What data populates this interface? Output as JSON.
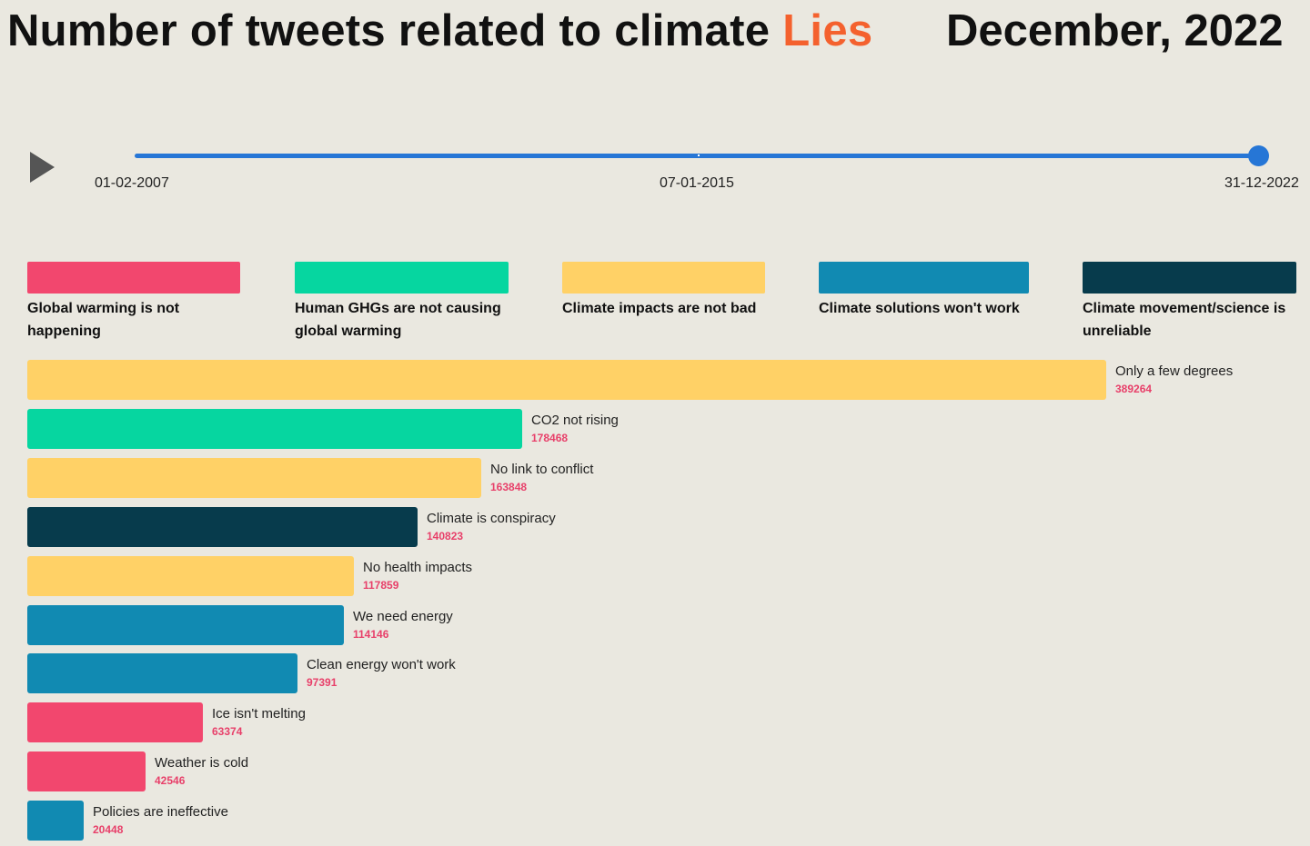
{
  "header": {
    "title_prefix": "Number of tweets related to climate ",
    "title_highlight": "Lies",
    "period": "December, 2022"
  },
  "timeline": {
    "start_label": "01-02-2007",
    "mid_label": "07-01-2015",
    "end_label": "31-12-2022",
    "position": 1.0
  },
  "colors": {
    "accent_title": "#f4612e",
    "slider": "#2676d6",
    "value_label": "#e8406a"
  },
  "chart_data": {
    "type": "bar",
    "orientation": "horizontal",
    "xlim": [
      0,
      389264
    ],
    "legend": [
      {
        "label": "Global warming is not happening",
        "color": "#f2476e"
      },
      {
        "label": "Human GHGs are not causing global warming",
        "color": "#06d6a0"
      },
      {
        "label": "Climate impacts are not bad",
        "color": "#ffd166"
      },
      {
        "label": "Climate solutions won't work",
        "color": "#118ab2"
      },
      {
        "label": "Climate movement/science is unreliable",
        "color": "#073b4c"
      }
    ],
    "categories": [
      "Only a few degrees",
      "CO2 not rising",
      "No link to conflict",
      "Climate is conspiracy",
      "No health impacts",
      "We need energy",
      "Clean energy won't work",
      "Ice isn't melting",
      "Weather is cold",
      "Policies are ineffective"
    ],
    "values": [
      389264,
      178468,
      163848,
      140823,
      117859,
      114146,
      97391,
      63374,
      42546,
      20448
    ],
    "group_index": [
      2,
      1,
      2,
      4,
      2,
      3,
      3,
      0,
      0,
      3
    ]
  }
}
